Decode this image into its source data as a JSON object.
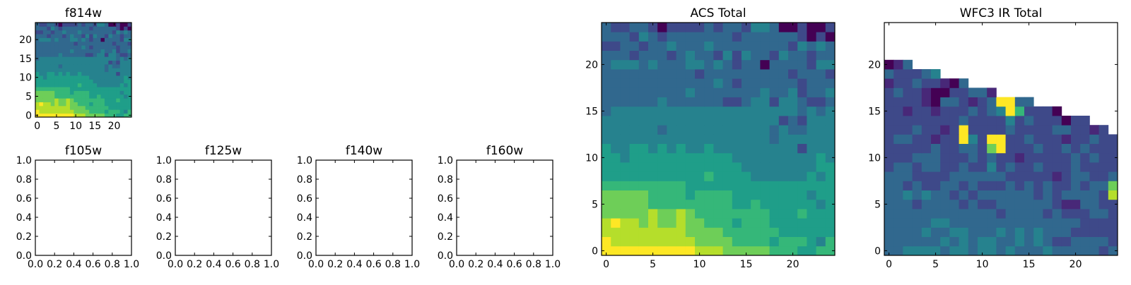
{
  "colormap": [
    "#440154",
    "#482878",
    "#3e4989",
    "#31688e",
    "#26828e",
    "#1f9e89",
    "#35b779",
    "#6ece58",
    "#b5de2b",
    "#fde725"
  ],
  "chart_data": [
    {
      "id": "f814w",
      "type": "heatmap",
      "title": "f814w",
      "xlim": [
        -0.5,
        24.5
      ],
      "ylim": [
        -0.5,
        24.5
      ],
      "xticks": [
        0,
        5,
        10,
        15,
        20
      ],
      "yticks": [
        0,
        5,
        10,
        15,
        20
      ],
      "value_scale": "normalized 0-9 (viridis), '.' = no data",
      "rows_bottom_to_top": [
        "9999999999888777776665566",
        "9888888888777766665666546",
        "8888888887777666666555555",
        "8988787787766656665555555",
        "7777787787666666665556555",
        "7777766666666655655555545",
        "7777766665666655555555455",
        "6666666665555555555555555",
        "5555555555565555444444545",
        "5555555555555554444444455",
        "5545555555555544444444454",
        "5445545454454444444442444",
        "4444444444444444443444444",
        "4444443444444444443433444",
        "4444444444444444444232444",
        "3444444444444444444443434",
        "3333334333333223442443223",
        "3333333334333333343342334",
        "3333333333334323333332333",
        "3333333333233333333323332",
        "3444343334434323303333244",
        "3332333234332424332433233",
        "2233233433343333333324343",
        "3332432333333323333332020",
        "3223320222232332443002002"
      ]
    },
    {
      "id": "f105w",
      "type": "empty",
      "title": "f105w",
      "xlim": [
        0,
        1
      ],
      "ylim": [
        0,
        1
      ],
      "xticks": [
        "0.0",
        "0.2",
        "0.4",
        "0.6",
        "0.8",
        "1.0"
      ],
      "yticks": [
        "0.0",
        "0.2",
        "0.4",
        "0.6",
        "0.8",
        "1.0"
      ]
    },
    {
      "id": "f125w",
      "type": "empty",
      "title": "f125w",
      "xlim": [
        0,
        1
      ],
      "ylim": [
        0,
        1
      ],
      "xticks": [
        "0.0",
        "0.2",
        "0.4",
        "0.6",
        "0.8",
        "1.0"
      ],
      "yticks": [
        "0.0",
        "0.2",
        "0.4",
        "0.6",
        "0.8",
        "1.0"
      ]
    },
    {
      "id": "f140w",
      "type": "empty",
      "title": "f140w",
      "xlim": [
        0,
        1
      ],
      "ylim": [
        0,
        1
      ],
      "xticks": [
        "0.0",
        "0.2",
        "0.4",
        "0.6",
        "0.8",
        "1.0"
      ],
      "yticks": [
        "0.0",
        "0.2",
        "0.4",
        "0.6",
        "0.8",
        "1.0"
      ]
    },
    {
      "id": "f160w",
      "type": "empty",
      "title": "f160w",
      "xlim": [
        0,
        1
      ],
      "ylim": [
        0,
        1
      ],
      "xticks": [
        "0.0",
        "0.2",
        "0.4",
        "0.6",
        "0.8",
        "1.0"
      ],
      "yticks": [
        "0.0",
        "0.2",
        "0.4",
        "0.6",
        "0.8",
        "1.0"
      ]
    },
    {
      "id": "acs_total",
      "type": "heatmap",
      "title": "ACS Total",
      "xlim": [
        -0.5,
        24.5
      ],
      "ylim": [
        -0.5,
        24.5
      ],
      "xticks": [
        0,
        5,
        10,
        15,
        20
      ],
      "yticks": [
        0,
        5,
        10,
        15,
        20
      ],
      "value_scale": "normalized 0-9 (viridis), '.' = no data",
      "rows_bottom_to_top": [
        "9999999999888777776665566",
        "9888888888777766665666546",
        "8888888887777666666555555",
        "8988787787766656665555555",
        "7777787787666666665556555",
        "7777766666666655655555545",
        "7777766665666655555555455",
        "6666666665555555555555555",
        "5555555555565555444444545",
        "5555555555555554444444455",
        "5545555555555544444444454",
        "5445545454454444444442444",
        "4444444444444444443444444",
        "4444443444444444443433444",
        "4444444444444444444232444",
        "3444444444444444444443434",
        "3333334333333223442443223",
        "3333333334333333343342334",
        "3333333333334323333332333",
        "3333333333233333333323332",
        "3444343334434323303333244",
        "3332333234332424332433233",
        "2233233433343333333324343",
        "3332432333333323333332020",
        "3223320222232332443002002"
      ]
    },
    {
      "id": "wfc3_ir_total",
      "type": "heatmap",
      "title": "WFC3 IR Total",
      "xlim": [
        -0.5,
        24.5
      ],
      "ylim": [
        -0.5,
        24.5
      ],
      "xticks": [
        0,
        5,
        10,
        15,
        20
      ],
      "yticks": [
        0,
        5,
        10,
        15,
        20
      ],
      "value_scale": "normalized 0-9 (viridis), '.' = no data",
      "rows_bottom_to_top": [
        "3344443443443433343333323",
        "3333334343443343432233332",
        "3333433443334343433322222",
        "3333344333333333333332222",
        "3333333333332333323222332",
        "3332333323223333332113322",
        "3343433232333333232333328",
        "3323223323222323232232337",
        "3332222333333222221233223",
        "2332332232242322322232222",
        "2223332223232212222232322",
        "2222232233279222322323222",
        "2332212294299223222122322",
        "222322129222232222332212.",
        "2222222232222423222022...",
        "2212212223234962220......",
        "2222103321239933.........",
        "232210022331.............",
        "122322103................",
        "322234...................",
        "013......................",
        ".........................",
        ".........................",
        ".........................",
        "........................."
      ]
    }
  ]
}
